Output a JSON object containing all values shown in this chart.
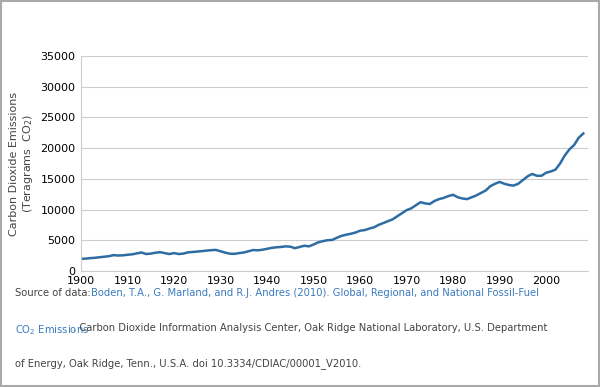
{
  "title_bg_color": "#F5A623",
  "title_text_color": "#FFFFFF",
  "line_color": "#2E6DA4",
  "line_width": 1.8,
  "xlim": [
    1900,
    2009
  ],
  "ylim": [
    0,
    35000
  ],
  "yticks": [
    0,
    5000,
    10000,
    15000,
    20000,
    25000,
    30000,
    35000
  ],
  "xticks": [
    1900,
    1910,
    1920,
    1930,
    1940,
    1950,
    1960,
    1970,
    1980,
    1990,
    2000
  ],
  "grid_color": "#CCCCCC",
  "bg_color": "#FFFFFF",
  "source_link_color": "#3A7BBF",
  "source_normal_color": "#444444",
  "years": [
    1900,
    1901,
    1902,
    1903,
    1904,
    1905,
    1906,
    1907,
    1908,
    1909,
    1910,
    1911,
    1912,
    1913,
    1914,
    1915,
    1916,
    1917,
    1918,
    1919,
    1920,
    1921,
    1922,
    1923,
    1924,
    1925,
    1926,
    1927,
    1928,
    1929,
    1930,
    1931,
    1932,
    1933,
    1934,
    1935,
    1936,
    1937,
    1938,
    1939,
    1940,
    1941,
    1942,
    1943,
    1944,
    1945,
    1946,
    1947,
    1948,
    1949,
    1950,
    1951,
    1952,
    1953,
    1954,
    1955,
    1956,
    1957,
    1958,
    1959,
    1960,
    1961,
    1962,
    1963,
    1964,
    1965,
    1966,
    1967,
    1968,
    1969,
    1970,
    1971,
    1972,
    1973,
    1974,
    1975,
    1976,
    1977,
    1978,
    1979,
    1980,
    1981,
    1982,
    1983,
    1984,
    1985,
    1986,
    1987,
    1988,
    1989,
    1990,
    1991,
    1992,
    1993,
    1994,
    1995,
    1996,
    1997,
    1998,
    1999,
    2000,
    2001,
    2002,
    2003,
    2004,
    2005,
    2006,
    2007,
    2008
  ],
  "values": [
    1953,
    2000,
    2085,
    2134,
    2230,
    2305,
    2399,
    2573,
    2500,
    2540,
    2630,
    2700,
    2850,
    3000,
    2750,
    2820,
    2960,
    3050,
    2900,
    2750,
    2900,
    2750,
    2820,
    3020,
    3080,
    3150,
    3220,
    3310,
    3380,
    3420,
    3200,
    2980,
    2800,
    2780,
    2900,
    3000,
    3200,
    3400,
    3350,
    3450,
    3600,
    3750,
    3850,
    3900,
    4000,
    3950,
    3700,
    3900,
    4100,
    4000,
    4300,
    4650,
    4850,
    5000,
    5050,
    5400,
    5700,
    5900,
    6050,
    6250,
    6550,
    6650,
    6900,
    7100,
    7500,
    7800,
    8100,
    8400,
    8900,
    9400,
    9900,
    10200,
    10700,
    11200,
    11000,
    10900,
    11400,
    11700,
    11900,
    12200,
    12400,
    12000,
    11800,
    11700,
    12000,
    12300,
    12700,
    13100,
    13800,
    14200,
    14500,
    14200,
    14000,
    13900,
    14200,
    14800,
    15400,
    15800,
    15500,
    15500,
    16000,
    16200,
    16500,
    17500,
    18800,
    19800,
    20500,
    21700,
    22400
  ],
  "figsize": [
    6.0,
    3.87
  ],
  "dpi": 100
}
